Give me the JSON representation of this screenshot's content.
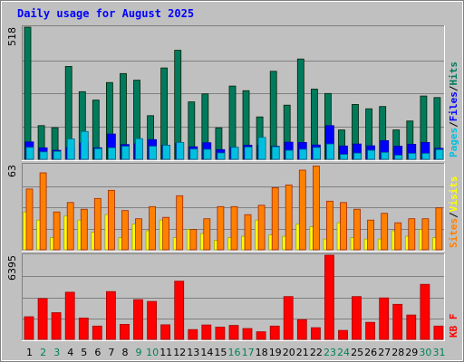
{
  "title": "Daily usage for August 2025",
  "colors": {
    "title": "#0000ff",
    "frame_bg": "#c0c0c0",
    "grid": "#808080",
    "weekend": "#00805c",
    "weekday": "#000000"
  },
  "chart_data": [
    {
      "type": "bar",
      "panel": "pages-files-hits",
      "ymax_label": "518",
      "ylim": [
        0,
        518
      ],
      "grid": true,
      "legend_position": "right, vertical",
      "legend": [
        {
          "name": "Pages",
          "color": "#00c0e0"
        },
        {
          "name": "Files",
          "color": "#0000ff"
        },
        {
          "name": "Hits",
          "color": "#007a5c"
        }
      ],
      "categories": [
        "1",
        "2",
        "3",
        "4",
        "5",
        "6",
        "7",
        "8",
        "9",
        "10",
        "11",
        "12",
        "13",
        "14",
        "15",
        "16",
        "17",
        "18",
        "19",
        "20",
        "21",
        "22",
        "23",
        "24",
        "25",
        "26",
        "27",
        "28",
        "29",
        "30",
        "31"
      ],
      "series": [
        {
          "name": "Hits",
          "color": "#007a5c",
          "values": [
            518,
            132,
            124,
            364,
            265,
            232,
            301,
            336,
            310,
            171,
            358,
            427,
            225,
            256,
            123,
            287,
            269,
            166,
            345,
            212,
            393,
            275,
            258,
            115,
            215,
            198,
            207,
            115,
            150,
            248,
            242
          ]
        },
        {
          "name": "Files",
          "color": "#0000ff",
          "values": [
            68,
            45,
            35,
            46,
            64,
            45,
            99,
            58,
            61,
            77,
            55,
            63,
            49,
            65,
            38,
            47,
            55,
            55,
            51,
            67,
            66,
            56,
            132,
            52,
            60,
            53,
            73,
            51,
            59,
            66,
            43
          ]
        },
        {
          "name": "Pages",
          "color": "#00c0e0",
          "values": [
            47,
            29,
            31,
            80,
            109,
            42,
            45,
            51,
            81,
            51,
            55,
            66,
            40,
            39,
            25,
            47,
            48,
            86,
            49,
            35,
            39,
            46,
            60,
            19,
            24,
            35,
            27,
            16,
            23,
            23,
            38
          ]
        }
      ]
    },
    {
      "type": "bar",
      "panel": "visits-sites",
      "ymax_label": "63",
      "ylim": [
        0,
        63
      ],
      "grid": true,
      "legend_position": "right, vertical",
      "legend": [
        {
          "name": "Sites",
          "color": "#ff8000"
        },
        {
          "name": "Visits",
          "color": "#ffff00"
        }
      ],
      "categories": [
        "1",
        "2",
        "3",
        "4",
        "5",
        "6",
        "7",
        "8",
        "9",
        "10",
        "11",
        "12",
        "13",
        "14",
        "15",
        "16",
        "17",
        "18",
        "19",
        "20",
        "21",
        "22",
        "23",
        "24",
        "25",
        "26",
        "27",
        "28",
        "29",
        "30",
        "31"
      ],
      "series": [
        {
          "name": "Visits",
          "color": "#ffff00",
          "values": [
            28,
            22,
            9,
            25,
            22,
            13,
            26,
            9,
            19,
            14,
            22,
            9,
            15,
            12,
            7,
            9,
            10,
            22,
            11,
            10,
            19,
            17,
            8,
            20,
            9,
            8,
            8,
            14,
            10,
            15,
            9
          ]
        },
        {
          "name": "Sites",
          "color": "#ff8000",
          "values": [
            45,
            57,
            28,
            35,
            30,
            38,
            44,
            29,
            23,
            32,
            24,
            40,
            15,
            23,
            32,
            32,
            26,
            33,
            46,
            48,
            59,
            62,
            36,
            35,
            30,
            22,
            27,
            20,
            23,
            23,
            31
          ]
        }
      ]
    },
    {
      "type": "bar",
      "panel": "kb",
      "ymax_label": "6395",
      "ylim": [
        0,
        6395
      ],
      "grid": true,
      "legend_position": "right, vertical",
      "legend": [
        {
          "name": "KB F",
          "color": "#ff0000"
        }
      ],
      "categories": [
        "1",
        "2",
        "3",
        "4",
        "5",
        "6",
        "7",
        "8",
        "9",
        "10",
        "11",
        "12",
        "13",
        "14",
        "15",
        "16",
        "17",
        "18",
        "19",
        "20",
        "21",
        "22",
        "23",
        "24",
        "25",
        "26",
        "27",
        "28",
        "29",
        "30",
        "31"
      ],
      "series": [
        {
          "name": "KB F",
          "color": "#ff0000",
          "values": [
            1720,
            3100,
            2030,
            3580,
            1620,
            1011,
            3630,
            1140,
            3020,
            2880,
            1110,
            4420,
            742,
            1090,
            937,
            1060,
            824,
            580,
            1009,
            3250,
            1500,
            889,
            6395,
            682,
            3250,
            1290,
            3150,
            2660,
            1850,
            4180,
            1010
          ]
        }
      ]
    }
  ],
  "x_axis": {
    "labels": [
      "1",
      "2",
      "3",
      "4",
      "5",
      "6",
      "7",
      "8",
      "9",
      "10",
      "11",
      "12",
      "13",
      "14",
      "15",
      "16",
      "17",
      "18",
      "19",
      "20",
      "21",
      "22",
      "23",
      "24",
      "25",
      "26",
      "27",
      "28",
      "29",
      "30",
      "31"
    ],
    "weekend_days": [
      "2",
      "3",
      "9",
      "10",
      "16",
      "17",
      "23",
      "24",
      "30",
      "31"
    ]
  }
}
